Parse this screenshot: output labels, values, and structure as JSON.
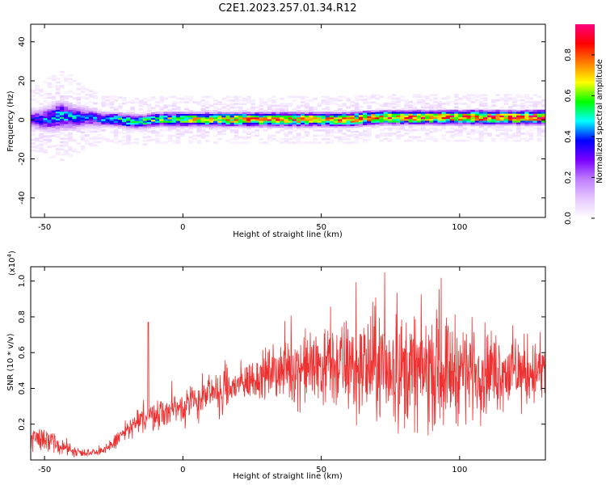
{
  "title": "C2E1.2023.257.01.34.R12",
  "colors": {
    "trace": "#ee3030",
    "axis": "#000000",
    "background": "#ffffff"
  },
  "chart_data": [
    {
      "type": "heatmap",
      "xlabel": "Height of straight line (km)",
      "ylabel": "Frequency (Hz)",
      "xlim": [
        -55,
        131
      ],
      "ylim": [
        -50,
        49
      ],
      "xticks": [
        "-50",
        "0",
        "50",
        "100"
      ],
      "yticks": [
        "-40",
        "-20",
        "0",
        "20",
        "40"
      ],
      "x_tick_values": [
        -50,
        0,
        50,
        100
      ],
      "y_tick_values": [
        -40,
        -20,
        0,
        20,
        40
      ],
      "colorbar": {
        "label": "Normalized spectral amplitude",
        "range": [
          0.0,
          0.95
        ],
        "ticks": [
          "0.0",
          "0.2",
          "0.4",
          "0.6",
          "0.8"
        ],
        "tick_values": [
          0.0,
          0.2,
          0.4,
          0.6,
          0.8
        ],
        "colormap": [
          "#ffffff",
          "#e6c8ff",
          "#c080ff",
          "#7a00ff",
          "#0000ff",
          "#00ffff",
          "#00ff00",
          "#ffff00",
          "#ff7f00",
          "#ff0000",
          "#ff007f"
        ]
      },
      "ridge": {
        "x": [
          -55,
          -50,
          -45,
          -40,
          -35,
          -30,
          -25,
          -20,
          -15,
          -10,
          -5,
          0,
          10,
          20,
          30,
          40,
          50,
          60,
          70,
          80,
          90,
          100,
          110,
          120,
          131
        ],
        "center_hz": [
          0,
          0,
          2,
          1,
          1,
          0,
          0,
          -1,
          -1,
          0,
          0,
          0,
          0,
          0,
          0,
          0,
          0,
          0,
          1,
          1,
          1,
          1,
          1,
          1,
          1
        ],
        "halfwidth_hz": [
          4,
          5,
          6,
          5,
          4,
          3,
          3,
          3,
          3,
          3,
          3,
          3,
          3,
          3,
          3,
          3,
          3,
          3,
          3,
          3,
          3,
          3,
          3,
          3,
          3
        ],
        "peak_amplitude": [
          0.35,
          0.45,
          0.5,
          0.45,
          0.4,
          0.45,
          0.55,
          0.6,
          0.6,
          0.6,
          0.65,
          0.7,
          0.75,
          0.8,
          0.85,
          0.8,
          0.8,
          0.85,
          0.85,
          0.85,
          0.88,
          0.9,
          0.9,
          0.9,
          0.92
        ]
      }
    },
    {
      "type": "line",
      "xlabel": "Height of straight line (km)",
      "ylabel": "SNR (10 * v/v)",
      "yscale_label": "(x10",
      "yscale_exponent": "4",
      "yscale_close": ")",
      "xlim": [
        -55,
        131
      ],
      "ylim": [
        0.0,
        1.08
      ],
      "xticks": [
        "-50",
        "0",
        "50",
        "100"
      ],
      "yticks": [
        "0.2",
        "0.4",
        "0.6",
        "0.8",
        "1.0"
      ],
      "x_tick_values": [
        -50,
        0,
        50,
        100
      ],
      "y_tick_values": [
        0.2,
        0.4,
        0.6,
        0.8,
        1.0
      ],
      "series": [
        {
          "x": [
            -55,
            -50,
            -45,
            -40,
            -35,
            -30,
            -27,
            -25,
            -20,
            -15,
            -13,
            -10,
            -5,
            0,
            5,
            10,
            15,
            20,
            25,
            30,
            35,
            40,
            45,
            50,
            55,
            60,
            65,
            70,
            75,
            80,
            85,
            90,
            95,
            100,
            105,
            110,
            115,
            120,
            125,
            131
          ],
          "mean": [
            0.13,
            0.12,
            0.08,
            0.05,
            0.04,
            0.05,
            0.06,
            0.1,
            0.17,
            0.22,
            0.24,
            0.25,
            0.28,
            0.3,
            0.33,
            0.36,
            0.38,
            0.42,
            0.45,
            0.48,
            0.5,
            0.51,
            0.52,
            0.53,
            0.53,
            0.52,
            0.52,
            0.52,
            0.51,
            0.5,
            0.5,
            0.5,
            0.5,
            0.51,
            0.5,
            0.5,
            0.5,
            0.49,
            0.49,
            0.5
          ],
          "spread": [
            0.1,
            0.1,
            0.06,
            0.04,
            0.03,
            0.03,
            0.04,
            0.06,
            0.08,
            0.1,
            0.12,
            0.1,
            0.12,
            0.14,
            0.14,
            0.14,
            0.16,
            0.14,
            0.16,
            0.18,
            0.22,
            0.26,
            0.28,
            0.3,
            0.34,
            0.36,
            0.4,
            0.42,
            0.42,
            0.42,
            0.42,
            0.42,
            0.4,
            0.38,
            0.34,
            0.32,
            0.3,
            0.28,
            0.26,
            0.24
          ]
        }
      ]
    }
  ]
}
